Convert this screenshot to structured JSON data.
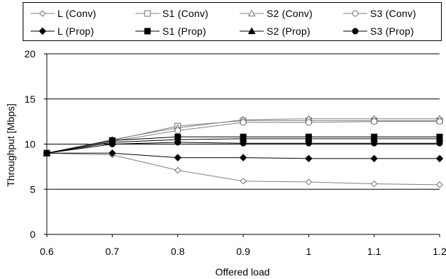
{
  "chart_data": {
    "type": "line",
    "title": "",
    "xlabel": "Offered load",
    "ylabel": "Throughput [Mbps]",
    "x": [
      0.6,
      0.7,
      0.8,
      0.9,
      1,
      1.1,
      1.2
    ],
    "x_tick_labels": [
      "0.6",
      "0.7",
      "0.8",
      "0.9",
      "1",
      "1.1",
      "1.2"
    ],
    "ylim": [
      0,
      20
    ],
    "y_ticks": [
      0,
      5,
      10,
      15,
      20
    ],
    "y_tick_labels": [
      "0",
      "5",
      "10",
      "15",
      "20"
    ],
    "grid": "horizontal",
    "legend_position": "top",
    "series": [
      {
        "name": "L (Conv)",
        "marker": "diamond-open",
        "values": [
          9.0,
          8.8,
          7.1,
          5.9,
          5.8,
          5.6,
          5.5
        ]
      },
      {
        "name": "S1 (Conv)",
        "marker": "square-open",
        "values": [
          9.0,
          10.4,
          12.0,
          12.6,
          12.6,
          12.6,
          12.6
        ]
      },
      {
        "name": "S2 (Conv)",
        "marker": "triangle-open",
        "values": [
          9.0,
          10.5,
          11.8,
          12.7,
          12.8,
          12.8,
          12.8
        ]
      },
      {
        "name": "S3 (Conv)",
        "marker": "circle-open",
        "values": [
          9.0,
          10.3,
          11.5,
          12.4,
          12.4,
          12.5,
          12.5
        ]
      },
      {
        "name": "L (Prop)",
        "marker": "diamond-filled",
        "values": [
          9.0,
          9.0,
          8.5,
          8.5,
          8.4,
          8.4,
          8.4
        ]
      },
      {
        "name": "S1 (Prop)",
        "marker": "square-filled",
        "values": [
          9.0,
          10.4,
          10.8,
          10.8,
          10.8,
          10.8,
          10.8
        ]
      },
      {
        "name": "S2 (Prop)",
        "marker": "triangle-filled",
        "values": [
          9.0,
          10.2,
          10.5,
          10.6,
          10.6,
          10.6,
          10.6
        ]
      },
      {
        "name": "S3 (Prop)",
        "marker": "circle-filled",
        "values": [
          9.0,
          10.0,
          10.2,
          10.1,
          10.1,
          10.1,
          10.1
        ]
      }
    ],
    "colors": {
      "line_conv": "#808080",
      "line_prop": "#000000",
      "grid": "#000000"
    }
  }
}
